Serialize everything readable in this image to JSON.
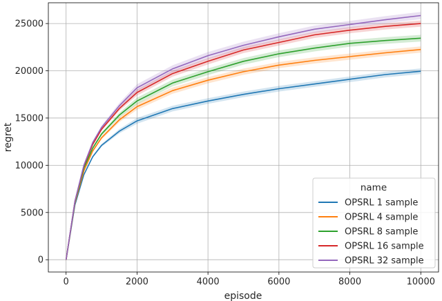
{
  "chart_data": {
    "type": "line",
    "title": "",
    "xlabel": "episode",
    "ylabel": "regret",
    "xlim": [
      -500,
      10500
    ],
    "ylim": [
      -1300,
      27200
    ],
    "xticks": [
      0,
      2000,
      4000,
      6000,
      8000,
      10000
    ],
    "yticks": [
      0,
      5000,
      10000,
      15000,
      20000,
      25000
    ],
    "grid": true,
    "legend": {
      "title": "name",
      "position": "bottom-right"
    },
    "x": [
      0,
      250,
      500,
      750,
      1000,
      1500,
      2000,
      3000,
      4000,
      5000,
      6000,
      7000,
      8000,
      9000,
      10000
    ],
    "series": [
      {
        "name": "OPSRL 1 sample",
        "color": "#1f77b4",
        "values": [
          0,
          5800,
          9000,
          10900,
          12100,
          13600,
          14700,
          16000,
          16800,
          17500,
          18100,
          18600,
          19100,
          19600,
          19950
        ],
        "band": 300
      },
      {
        "name": "OPSRL 4 sample",
        "color": "#ff7f0e",
        "values": [
          0,
          6000,
          9400,
          11500,
          12900,
          14800,
          16200,
          17900,
          19000,
          19900,
          20600,
          21100,
          21500,
          21900,
          22250
        ],
        "band": 330
      },
      {
        "name": "OPSRL 8 sample",
        "color": "#2ca02c",
        "values": [
          0,
          6100,
          9700,
          11800,
          13300,
          15300,
          16800,
          18700,
          19900,
          21000,
          21800,
          22400,
          22900,
          23200,
          23450
        ],
        "band": 350
      },
      {
        "name": "OPSRL 16 sample",
        "color": "#d62728",
        "values": [
          0,
          6200,
          9900,
          12200,
          13800,
          16000,
          17700,
          19700,
          21000,
          22200,
          23000,
          23800,
          24300,
          24700,
          25000
        ],
        "band": 330
      },
      {
        "name": "OPSRL 32 sample",
        "color": "#9467bd",
        "values": [
          0,
          6200,
          10000,
          12400,
          14000,
          16300,
          18200,
          20200,
          21600,
          22700,
          23600,
          24400,
          24900,
          25400,
          25850
        ],
        "band": 380
      }
    ]
  }
}
